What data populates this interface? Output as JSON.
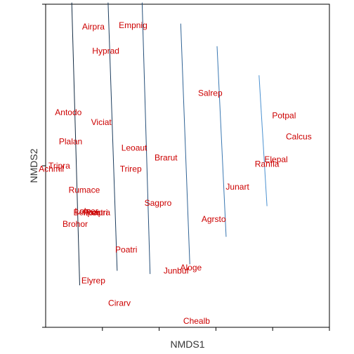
{
  "chart_data": {
    "type": "scatter",
    "xlabel": "NMDS1",
    "ylabel": "NMDS2",
    "xlim": [
      -1.0,
      1.5
    ],
    "ylim": [
      -1.0,
      1.0
    ],
    "xticks": [
      -0.5,
      0.0,
      0.5,
      1.0,
      1.5
    ],
    "yticks": [
      -1.0,
      0.0,
      1.0
    ],
    "grid": false,
    "label_color": "#cc0000",
    "species": [
      {
        "label": "Airpra",
        "x": -0.58,
        "y": 0.86
      },
      {
        "label": "Empnig",
        "x": -0.23,
        "y": 0.87
      },
      {
        "label": "Hyprad",
        "x": -0.47,
        "y": 0.71
      },
      {
        "label": "Salrep",
        "x": 0.45,
        "y": 0.45
      },
      {
        "label": "Potpal",
        "x": 1.1,
        "y": 0.31
      },
      {
        "label": "Antodo",
        "x": -0.8,
        "y": 0.33
      },
      {
        "label": "Viciat",
        "x": -0.51,
        "y": 0.27
      },
      {
        "label": "Calcus",
        "x": 1.23,
        "y": 0.18
      },
      {
        "label": "Plalan",
        "x": -0.78,
        "y": 0.15
      },
      {
        "label": "Leoaut",
        "x": -0.22,
        "y": 0.11
      },
      {
        "label": "Brarut",
        "x": 0.06,
        "y": 0.05
      },
      {
        "label": "Elepal",
        "x": 1.03,
        "y": 0.04
      },
      {
        "label": "Ranfla",
        "x": 0.95,
        "y": 0.01
      },
      {
        "label": "Tripra",
        "x": -0.88,
        "y": 0.0
      },
      {
        "label": "Achmil",
        "x": -0.95,
        "y": -0.02
      },
      {
        "label": "Trirep",
        "x": -0.25,
        "y": -0.02
      },
      {
        "label": "Junart",
        "x": 0.69,
        "y": -0.13
      },
      {
        "label": "Rumace",
        "x": -0.66,
        "y": -0.15
      },
      {
        "label": "Sagpro",
        "x": -0.01,
        "y": -0.23
      },
      {
        "label": "Lolper",
        "x": -0.64,
        "y": -0.28
      },
      {
        "label": "Bellper",
        "x": -0.64,
        "y": -0.29
      },
      {
        "label": "Poapra",
        "x": -0.55,
        "y": -0.29
      },
      {
        "label": "Poatri",
        "x": -0.55,
        "y": -0.29
      },
      {
        "label": "Agrsto",
        "x": 0.48,
        "y": -0.33
      },
      {
        "label": "Brohor",
        "x": -0.74,
        "y": -0.36
      },
      {
        "label": "Poatri",
        "x": -0.29,
        "y": -0.52
      },
      {
        "label": "Junbuf",
        "x": 0.15,
        "y": -0.65
      },
      {
        "label": "Aloge",
        "x": 0.28,
        "y": -0.63
      },
      {
        "label": "Elyrep",
        "x": -0.58,
        "y": -0.71
      },
      {
        "label": "Cirarv",
        "x": -0.35,
        "y": -0.85
      },
      {
        "label": "Chealb",
        "x": 0.33,
        "y": -0.96
      }
    ],
    "contours": [
      {
        "color": "#132b43",
        "from": [
          -0.77,
          1.01
        ],
        "to": [
          -0.7,
          -0.74
        ]
      },
      {
        "color": "#1c3d5e",
        "from": [
          -0.45,
          1.01
        ],
        "to": [
          -0.37,
          -0.65
        ]
      },
      {
        "color": "#264f79",
        "from": [
          -0.15,
          1.01
        ],
        "to": [
          -0.08,
          -0.67
        ]
      },
      {
        "color": "#306395",
        "from": [
          0.19,
          0.88
        ],
        "to": [
          0.27,
          -0.61
        ]
      },
      {
        "color": "#3a78b2",
        "from": [
          0.51,
          0.74
        ],
        "to": [
          0.59,
          -0.44
        ]
      },
      {
        "color": "#4a90d0",
        "from": [
          0.88,
          0.56
        ],
        "to": [
          0.95,
          -0.25
        ]
      }
    ]
  }
}
